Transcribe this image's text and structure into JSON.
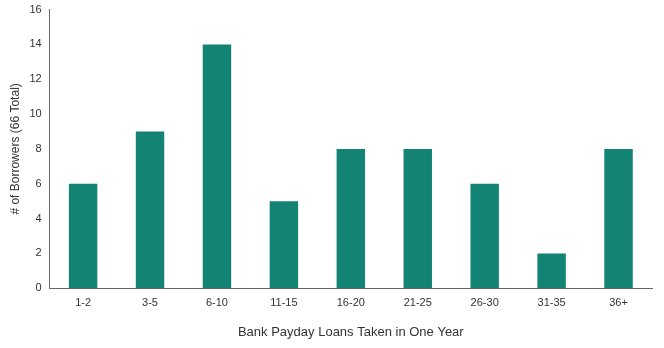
{
  "chart_data": {
    "type": "bar",
    "x_label": "Bank Payday Loans Taken in One Year",
    "y_label": "# of Borrowers (66 Total)",
    "categories": [
      "1-2",
      "3-5",
      "6-10",
      "11-15",
      "16-20",
      "21-25",
      "26-30",
      "31-35",
      "36+"
    ],
    "values": [
      6,
      9,
      14,
      5,
      8,
      8,
      6,
      2,
      8
    ],
    "color": "#138374",
    "ylim": [
      0,
      16
    ],
    "yticks": [
      0,
      2,
      4,
      6,
      8,
      10,
      12,
      14,
      16
    ],
    "grid": false
  }
}
